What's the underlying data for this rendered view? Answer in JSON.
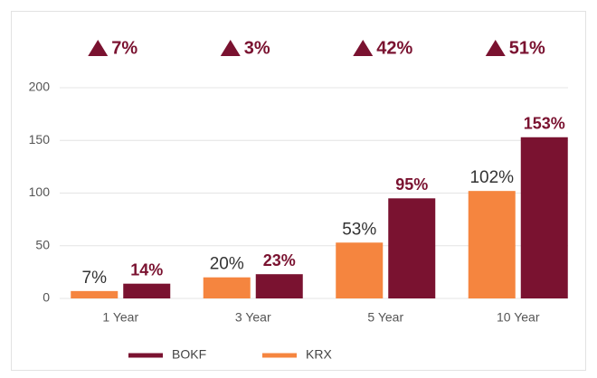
{
  "chart_data": {
    "type": "bar",
    "categories": [
      "1 Year",
      "3 Year",
      "5 Year",
      "10 Year"
    ],
    "series": [
      {
        "name": "KRX",
        "color": "#f5853f",
        "values": [
          7,
          20,
          53,
          102
        ],
        "value_labels": [
          "7%",
          "20%",
          "53%",
          "102%"
        ]
      },
      {
        "name": "BOKF",
        "color": "#7a1230",
        "values": [
          14,
          23,
          95,
          153
        ],
        "value_labels": [
          "14%",
          "23%",
          "95%",
          "153%"
        ]
      }
    ],
    "annotations": [
      "7%",
      "3%",
      "42%",
      "51%"
    ],
    "ylim": [
      0,
      200
    ],
    "yticks": [
      0,
      50,
      100,
      150,
      200
    ],
    "grid": true
  }
}
